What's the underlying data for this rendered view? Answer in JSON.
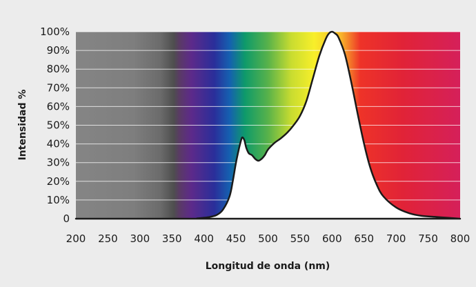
{
  "chart_data": {
    "type": "area",
    "xlabel": "Longitud de onda (nm)",
    "ylabel": "Intensidad %",
    "xlim": [
      200,
      800
    ],
    "ylim": [
      0,
      100
    ],
    "x_ticks": [
      "200",
      "250",
      "300",
      "350",
      "400",
      "450",
      "500",
      "550",
      "600",
      "650",
      "700",
      "750",
      "800"
    ],
    "y_ticks": [
      "0",
      "10%",
      "20%",
      "30%",
      "40%",
      "50%",
      "60%",
      "70%",
      "80%",
      "90%",
      "100%"
    ],
    "grid": true,
    "background": "visible light spectrum gradient (gray below 380 nm, violet to red above)",
    "series": [
      {
        "fill": "#ffffff",
        "stroke": "#1a1a1a",
        "x": [
          200,
          370,
          390,
          400,
          410,
          420,
          430,
          440,
          445,
          450,
          455,
          458,
          460,
          463,
          466,
          470,
          475,
          480,
          485,
          490,
          495,
          500,
          510,
          520,
          530,
          540,
          550,
          560,
          570,
          580,
          590,
          595,
          600,
          605,
          610,
          620,
          630,
          640,
          650,
          660,
          670,
          680,
          700,
          720,
          740,
          760,
          780,
          800
        ],
        "y": [
          0,
          0,
          0.2,
          0.5,
          1,
          2,
          5,
          12,
          20,
          30,
          38,
          42,
          43.5,
          42,
          38,
          35,
          34,
          32,
          31,
          32,
          34,
          37,
          40.5,
          43,
          46,
          50,
          55,
          63,
          75,
          87,
          96,
          99,
          100,
          99,
          97,
          88,
          73,
          56,
          40,
          27,
          18,
          12,
          6,
          3,
          1.5,
          1,
          0.5,
          0
        ]
      }
    ]
  }
}
